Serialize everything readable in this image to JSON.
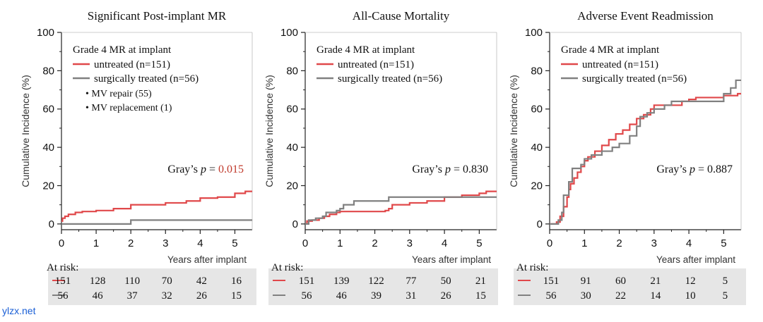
{
  "watermark": "ylzx.net",
  "colors": {
    "untreated": "#e0484a",
    "surgical": "#808080",
    "axis": "#222222",
    "p_highlight": "#c0392b",
    "risk_bg": "#e6e6e6"
  },
  "axis_common": {
    "ylabel": "Cumulative Incidence (%)",
    "xlabel": "Years after implant",
    "xlim": [
      0,
      5.5
    ],
    "ylim": [
      -3,
      100
    ],
    "xticks": [
      0,
      1,
      2,
      3,
      4,
      5
    ],
    "yticks": [
      0,
      20,
      40,
      60,
      80,
      100
    ]
  },
  "chart_data": [
    {
      "type": "line",
      "title": "Significant Post-implant MR",
      "legend_title": "Grade 4 MR at implant",
      "legend_extra": [
        "• MV repair (55)",
        "• MV replacement (1)"
      ],
      "p_prefix": "Gray’s",
      "p_symbol": "p",
      "p_eq": "=",
      "p_value": "0.015",
      "p_highlight": true,
      "series": [
        {
          "name": "untreated (n=151)",
          "points": [
            [
              0,
              1.5
            ],
            [
              0.03,
              3
            ],
            [
              0.1,
              4
            ],
            [
              0.2,
              5
            ],
            [
              0.4,
              6
            ],
            [
              0.6,
              6.5
            ],
            [
              1.0,
              7
            ],
            [
              1.5,
              8
            ],
            [
              2.0,
              10
            ],
            [
              3.0,
              11
            ],
            [
              3.6,
              12
            ],
            [
              4.0,
              13.5
            ],
            [
              4.5,
              14
            ],
            [
              5.0,
              16
            ],
            [
              5.3,
              17
            ],
            [
              5.5,
              17
            ]
          ]
        },
        {
          "name": "surgically treated (n=56)",
          "points": [
            [
              0,
              0
            ],
            [
              1.98,
              0
            ],
            [
              2.0,
              2
            ],
            [
              5.5,
              2
            ]
          ]
        }
      ],
      "at_risk_label": "At risk:",
      "at_risk": [
        [
          "151",
          "128",
          "110",
          "70",
          "42",
          "16"
        ],
        [
          "56",
          "46",
          "37",
          "32",
          "26",
          "15"
        ]
      ]
    },
    {
      "type": "line",
      "title": "All-Cause Mortality",
      "legend_title": "Grade 4 MR at implant",
      "legend_extra": [],
      "p_prefix": "Gray’s",
      "p_symbol": "p",
      "p_eq": "=",
      "p_value": "0.830",
      "p_highlight": false,
      "series": [
        {
          "name": "untreated (n=151)",
          "points": [
            [
              0,
              0
            ],
            [
              0.05,
              1.5
            ],
            [
              0.2,
              2
            ],
            [
              0.4,
              3
            ],
            [
              0.55,
              4
            ],
            [
              0.7,
              5
            ],
            [
              0.9,
              6
            ],
            [
              1.0,
              6.5
            ],
            [
              1.5,
              6.5
            ],
            [
              2.3,
              7
            ],
            [
              2.4,
              8
            ],
            [
              2.5,
              10
            ],
            [
              3.0,
              11
            ],
            [
              3.5,
              12
            ],
            [
              4.0,
              14
            ],
            [
              4.5,
              15
            ],
            [
              5.0,
              16
            ],
            [
              5.2,
              17
            ],
            [
              5.5,
              17
            ]
          ]
        },
        {
          "name": "surgically treated (n=56)",
          "points": [
            [
              0,
              0
            ],
            [
              0.1,
              2
            ],
            [
              0.3,
              3
            ],
            [
              0.5,
              4
            ],
            [
              0.6,
              6
            ],
            [
              0.9,
              7
            ],
            [
              1.0,
              8
            ],
            [
              1.1,
              10
            ],
            [
              1.4,
              12
            ],
            [
              2.4,
              14
            ],
            [
              4.0,
              14
            ],
            [
              5.5,
              14
            ]
          ]
        }
      ],
      "at_risk_label": "At risk:",
      "at_risk": [
        [
          "151",
          "139",
          "122",
          "77",
          "50",
          "21"
        ],
        [
          "56",
          "46",
          "39",
          "31",
          "26",
          "15"
        ]
      ]
    },
    {
      "type": "line",
      "title": "Adverse Event Readmission",
      "legend_title": "Grade 4 MR at implant",
      "legend_extra": [],
      "p_prefix": "Gray’s",
      "p_symbol": "p",
      "p_eq": "=",
      "p_value": "0.887",
      "p_highlight": false,
      "series": [
        {
          "name": "untreated (n=151)",
          "points": [
            [
              0,
              0
            ],
            [
              0.2,
              1
            ],
            [
              0.3,
              4
            ],
            [
              0.4,
              9
            ],
            [
              0.5,
              14
            ],
            [
              0.55,
              18
            ],
            [
              0.6,
              21
            ],
            [
              0.7,
              24
            ],
            [
              0.8,
              27
            ],
            [
              0.9,
              30
            ],
            [
              1.0,
              33
            ],
            [
              1.1,
              35
            ],
            [
              1.3,
              38
            ],
            [
              1.5,
              41
            ],
            [
              1.7,
              44
            ],
            [
              1.9,
              47
            ],
            [
              2.1,
              49
            ],
            [
              2.3,
              52
            ],
            [
              2.5,
              55
            ],
            [
              2.7,
              57
            ],
            [
              2.9,
              60
            ],
            [
              3.0,
              62
            ],
            [
              3.5,
              62
            ],
            [
              3.8,
              64
            ],
            [
              4.0,
              65
            ],
            [
              4.2,
              66
            ],
            [
              4.5,
              66
            ],
            [
              5.0,
              67
            ],
            [
              5.4,
              68
            ],
            [
              5.5,
              68
            ]
          ]
        },
        {
          "name": "surgically treated (n=56)",
          "points": [
            [
              0,
              0
            ],
            [
              0.25,
              2
            ],
            [
              0.35,
              6
            ],
            [
              0.4,
              15
            ],
            [
              0.55,
              22
            ],
            [
              0.65,
              29
            ],
            [
              0.9,
              31
            ],
            [
              1.0,
              34
            ],
            [
              1.2,
              36
            ],
            [
              1.5,
              38
            ],
            [
              1.8,
              40
            ],
            [
              2.0,
              42
            ],
            [
              2.3,
              46
            ],
            [
              2.5,
              51
            ],
            [
              2.6,
              56
            ],
            [
              2.8,
              58
            ],
            [
              3.0,
              60
            ],
            [
              3.3,
              62
            ],
            [
              3.5,
              64
            ],
            [
              4.0,
              64
            ],
            [
              5.0,
              68
            ],
            [
              5.2,
              71
            ],
            [
              5.35,
              75
            ],
            [
              5.5,
              75
            ]
          ]
        }
      ],
      "at_risk_label": "At risk:",
      "at_risk": [
        [
          "151",
          "91",
          "60",
          "21",
          "12",
          "5"
        ],
        [
          "56",
          "30",
          "22",
          "14",
          "10",
          "5"
        ]
      ]
    }
  ]
}
